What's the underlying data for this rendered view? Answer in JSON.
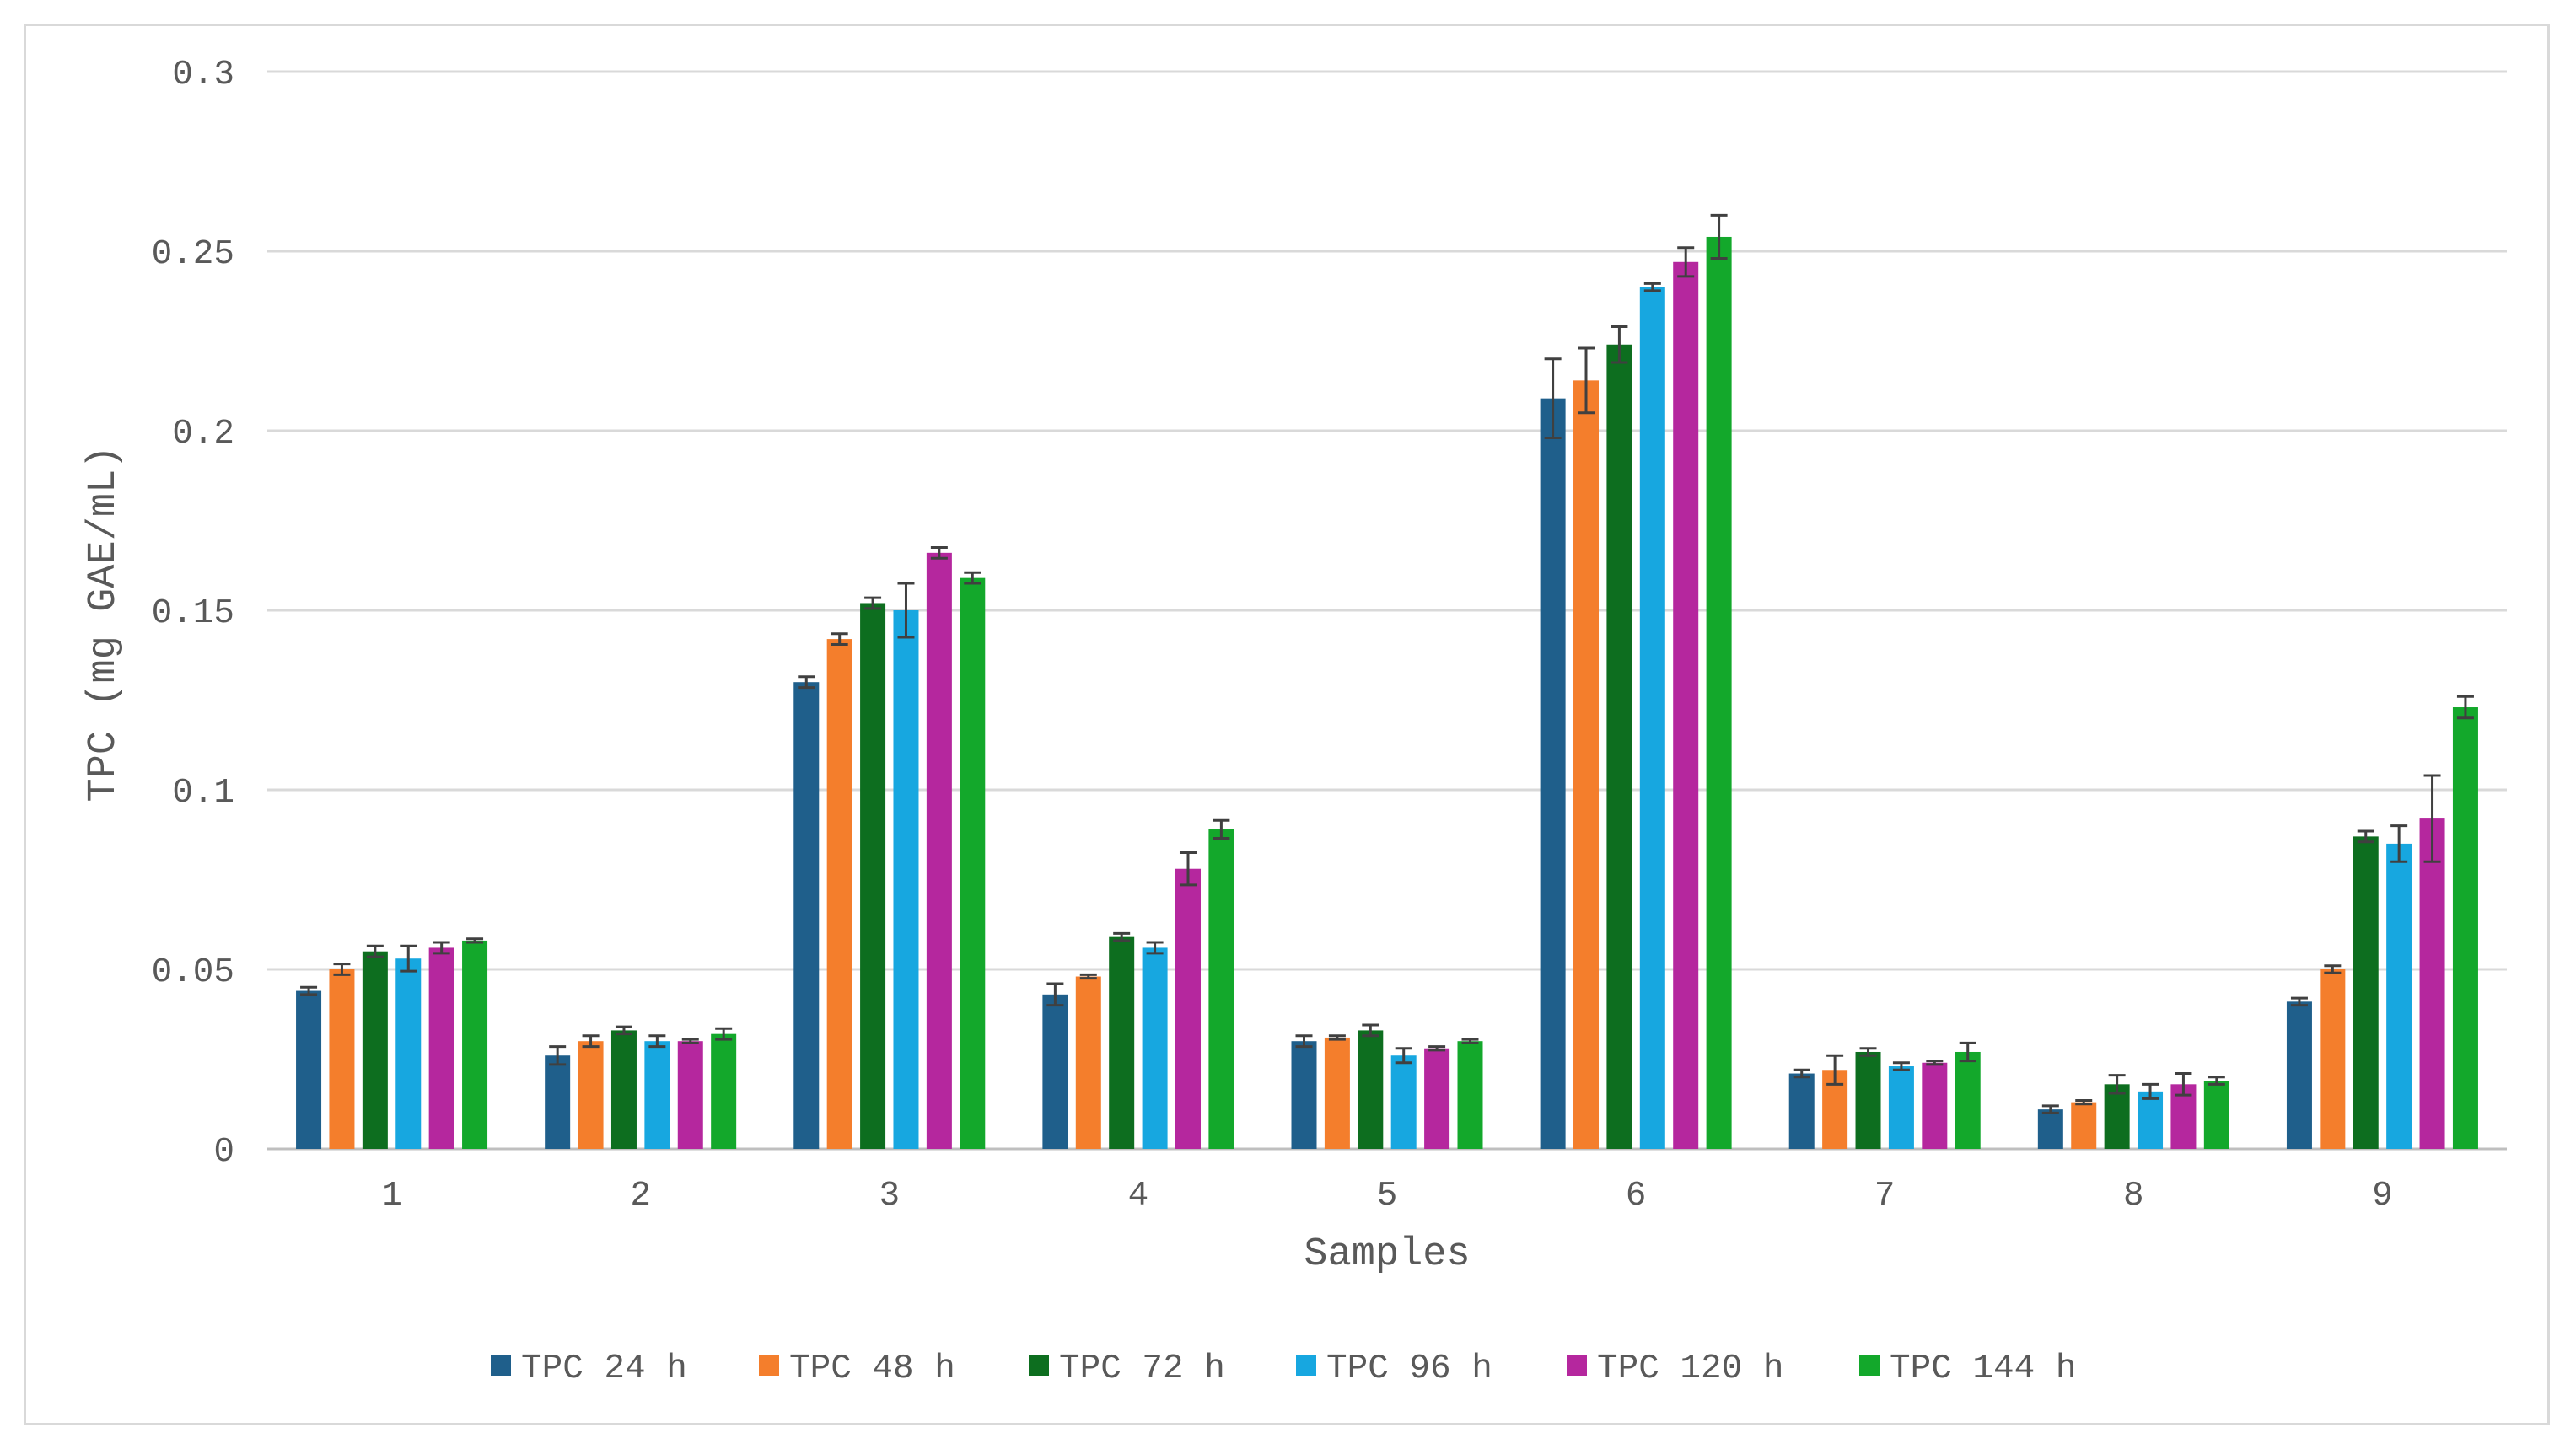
{
  "chart_data": {
    "type": "bar",
    "title": "",
    "xlabel": "Samples",
    "ylabel": "TPC (mg GAE/mL)",
    "ylim": [
      0,
      0.3
    ],
    "yticks": [
      "0",
      "0.05",
      "0.1",
      "0.15",
      "0.2",
      "0.25",
      "0.3"
    ],
    "grid": true,
    "legend_position": "bottom",
    "categories": [
      "1",
      "2",
      "3",
      "4",
      "5",
      "6",
      "7",
      "8",
      "9"
    ],
    "series": [
      {
        "name": "TPC 24 h",
        "color": "#1f5f8b",
        "values": [
          0.044,
          0.026,
          0.13,
          0.043,
          0.03,
          0.209,
          0.021,
          0.011,
          0.041
        ],
        "errors": [
          0.001,
          0.0025,
          0.0015,
          0.003,
          0.0015,
          0.011,
          0.001,
          0.001,
          0.001
        ]
      },
      {
        "name": "TPC 48 h",
        "color": "#f47e2c",
        "values": [
          0.05,
          0.03,
          0.142,
          0.048,
          0.031,
          0.214,
          0.022,
          0.013,
          0.05
        ],
        "errors": [
          0.0015,
          0.0015,
          0.0015,
          0.0005,
          0.0005,
          0.009,
          0.004,
          0.0005,
          0.001
        ]
      },
      {
        "name": "TPC 72 h",
        "color": "#0d6e1f",
        "values": [
          0.055,
          0.033,
          0.152,
          0.059,
          0.033,
          0.224,
          0.027,
          0.018,
          0.087
        ],
        "errors": [
          0.0015,
          0.001,
          0.0015,
          0.001,
          0.0015,
          0.005,
          0.001,
          0.0025,
          0.0015
        ]
      },
      {
        "name": "TPC 96 h",
        "color": "#17a7e0",
        "values": [
          0.053,
          0.03,
          0.15,
          0.056,
          0.026,
          0.24,
          0.023,
          0.016,
          0.085
        ],
        "errors": [
          0.0035,
          0.0015,
          0.0075,
          0.0015,
          0.002,
          0.001,
          0.001,
          0.002,
          0.005
        ]
      },
      {
        "name": "TPC 120 h",
        "color": "#b5279e",
        "values": [
          0.056,
          0.03,
          0.166,
          0.078,
          0.028,
          0.247,
          0.024,
          0.018,
          0.092
        ],
        "errors": [
          0.0015,
          0.0005,
          0.0015,
          0.0045,
          0.0005,
          0.004,
          0.0005,
          0.003,
          0.012
        ]
      },
      {
        "name": "TPC 144 h",
        "color": "#13a82b",
        "values": [
          0.058,
          0.032,
          0.159,
          0.089,
          0.03,
          0.254,
          0.027,
          0.019,
          0.123
        ],
        "errors": [
          0.0005,
          0.0015,
          0.0015,
          0.0025,
          0.0005,
          0.006,
          0.0025,
          0.001,
          0.003
        ]
      }
    ]
  }
}
